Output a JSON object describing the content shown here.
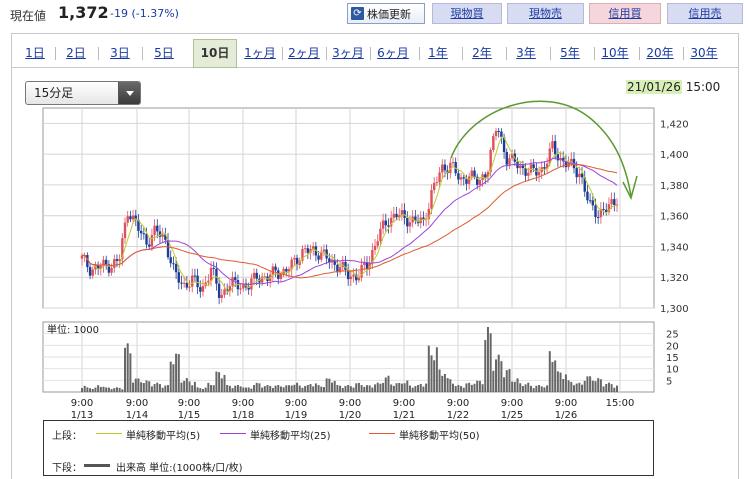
{
  "header": {
    "price_label": "現在値",
    "price_value": "1,372",
    "price_change": "-19 (-1.37%)",
    "refresh_label": "株価更新",
    "buttons": [
      "現物買",
      "現物売",
      "信用買",
      "信用売"
    ]
  },
  "tabs": [
    "1日",
    "2日",
    "3日",
    "5日",
    "10日",
    "1ヶ月",
    "2ヶ月",
    "3ヶ月",
    "6ヶ月",
    "1年",
    "2年",
    "3年",
    "5年",
    "10年",
    "20年",
    "30年"
  ],
  "active_tab": "10日",
  "interval_select": "15分足",
  "stamp": {
    "date": "21/01/26",
    "time": "15:00"
  },
  "legend": {
    "upper_label": "上段：",
    "ma5": "単純移動平均(5)",
    "ma25": "単純移動平均(25)",
    "ma50": "単純移動平均(50)",
    "lower_label": "下段：",
    "volume": "出来高 単位:(1000株/口/枚)"
  },
  "colors": {
    "up": "#e0505a",
    "down": "#1e3c96",
    "ma5": "#c0c830",
    "ma25": "#9a44d8",
    "ma50": "#e05a30",
    "annotation": "#5a9a30"
  },
  "chart_data": {
    "type": "candlestick",
    "x_ticks": [
      {
        "time": "9:00",
        "date": "1/13"
      },
      {
        "time": "9:00",
        "date": "1/14"
      },
      {
        "time": "9:00",
        "date": "1/15"
      },
      {
        "time": "9:00",
        "date": "1/18"
      },
      {
        "time": "9:00",
        "date": "1/19"
      },
      {
        "time": "9:00",
        "date": "1/20"
      },
      {
        "time": "9:00",
        "date": "1/21"
      },
      {
        "time": "9:00",
        "date": "1/22"
      },
      {
        "time": "9:00",
        "date": "1/25"
      },
      {
        "time": "9:00",
        "date": "1/26"
      },
      {
        "time": "15:00",
        "date": ""
      }
    ],
    "price_ylim": [
      1300,
      1430
    ],
    "price_ticks": [
      "1,300",
      "1,320",
      "1,340",
      "1,360",
      "1,380",
      "1,400",
      "1,420"
    ],
    "volume_unit_label": "単位: 1000",
    "volume_ylim": [
      0,
      30
    ],
    "volume_ticks": [
      "5",
      "10",
      "15",
      "20",
      "25"
    ],
    "close_path": [
      1332,
      1325,
      1327,
      1328,
      1330,
      1365,
      1352,
      1343,
      1350,
      1345,
      1322,
      1315,
      1318,
      1312,
      1325,
      1308,
      1315,
      1316,
      1313,
      1322,
      1318,
      1325,
      1322,
      1331,
      1336,
      1338,
      1335,
      1330,
      1327,
      1320,
      1322,
      1328,
      1346,
      1355,
      1362,
      1357,
      1358,
      1354,
      1378,
      1389,
      1395,
      1381,
      1388,
      1380,
      1392,
      1419,
      1398,
      1394,
      1390,
      1388,
      1391,
      1404,
      1396,
      1392,
      1388,
      1366,
      1362,
      1364,
      1372
    ],
    "volume_path": [
      3,
      2,
      3,
      2,
      2,
      21,
      6,
      5,
      4,
      3,
      17,
      6,
      5,
      2,
      4,
      9,
      3,
      3,
      2,
      4,
      3,
      3,
      3,
      4,
      3,
      4,
      3,
      6,
      3,
      3,
      4,
      3,
      4,
      7,
      4,
      5,
      3,
      4,
      20,
      10,
      6,
      3,
      4,
      5,
      28,
      16,
      10,
      6,
      4,
      3,
      3,
      18,
      9,
      5,
      4,
      7,
      6,
      4,
      3
    ],
    "series": [
      {
        "name": "単純移動平均(5)"
      },
      {
        "name": "単純移動平均(25)"
      },
      {
        "name": "単純移動平均(50)"
      }
    ]
  }
}
